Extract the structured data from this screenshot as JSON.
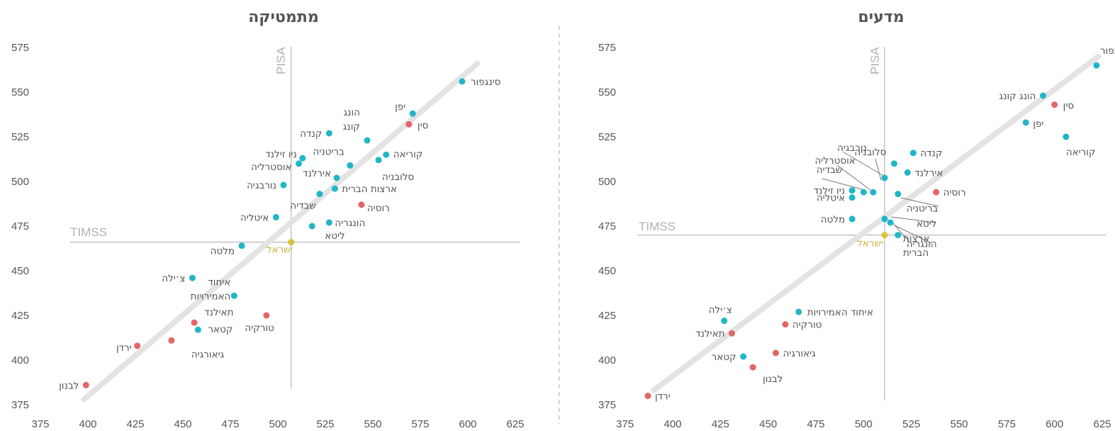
{
  "colors": {
    "oecd": "#1fb6c7",
    "non_oecd": "#e36565",
    "israel": "#d9c238",
    "trend": "#e3e3e3",
    "axis": "#a8a8a8"
  },
  "chart_data": [
    {
      "type": "scatter",
      "title": "מתמטיקה",
      "x_axis": "TIMSS",
      "y_axis": "PISA",
      "xlim": [
        375,
        625
      ],
      "ylim": [
        375,
        575
      ],
      "x_ticks": [
        375,
        400,
        425,
        450,
        475,
        500,
        525,
        550,
        575,
        600,
        625
      ],
      "y_ticks": [
        375,
        400,
        425,
        450,
        475,
        500,
        525,
        550,
        575
      ],
      "reference": {
        "x": 507,
        "y": 466
      },
      "trend": [
        [
          398,
          378
        ],
        [
          605,
          566
        ]
      ],
      "points": [
        {
          "label": "סינגפור",
          "x": 597,
          "y": 556,
          "group": "oecd"
        },
        {
          "label": "יפן",
          "x": 571,
          "y": 538,
          "group": "oecd"
        },
        {
          "label": "סין",
          "x": 569,
          "y": 532,
          "group": "non_oecd"
        },
        {
          "label": "הונג\nקונג",
          "x": 547,
          "y": 523,
          "group": "oecd"
        },
        {
          "label": "קוריאה",
          "x": 557,
          "y": 515,
          "group": "oecd"
        },
        {
          "label": "סלובניה",
          "x": 553,
          "y": 512,
          "group": "oecd"
        },
        {
          "label": "קנדה",
          "x": 527,
          "y": 527,
          "group": "oecd"
        },
        {
          "label": "בריטניה",
          "x": 538,
          "y": 509,
          "group": "oecd"
        },
        {
          "label": "ניו זילנד",
          "x": 513,
          "y": 513,
          "group": "oecd"
        },
        {
          "label": "אוסטרליה",
          "x": 511,
          "y": 510,
          "group": "oecd"
        },
        {
          "label": "אירלנד",
          "x": 531,
          "y": 502,
          "group": "oecd"
        },
        {
          "label": "נורבגיה",
          "x": 503,
          "y": 498,
          "group": "oecd"
        },
        {
          "label": "ארצות הברית",
          "x": 530,
          "y": 496,
          "group": "oecd"
        },
        {
          "label": "שבדיה",
          "x": 522,
          "y": 493,
          "group": "oecd"
        },
        {
          "label": "רוסיה",
          "x": 544,
          "y": 487,
          "group": "non_oecd"
        },
        {
          "label": "איטליה",
          "x": 499,
          "y": 480,
          "group": "oecd"
        },
        {
          "label": "הונגריה",
          "x": 527,
          "y": 477,
          "group": "oecd"
        },
        {
          "label": "ליטא",
          "x": 518,
          "y": 475,
          "group": "oecd"
        },
        {
          "label": "מלטה",
          "x": 481,
          "y": 464,
          "group": "oecd"
        },
        {
          "label": "ישראל",
          "x": 507,
          "y": 466,
          "group": "israel"
        },
        {
          "label": "צ׳ילה",
          "x": 455,
          "y": 446,
          "group": "oecd"
        },
        {
          "label": "איחוד\nהאמירויות",
          "x": 477,
          "y": 436,
          "group": "oecd"
        },
        {
          "label": "טורקיה",
          "x": 494,
          "y": 425,
          "group": "non_oecd"
        },
        {
          "label": "תאילנד",
          "x": 456,
          "y": 421,
          "group": "non_oecd"
        },
        {
          "label": "קטאר",
          "x": 458,
          "y": 417,
          "group": "oecd"
        },
        {
          "label": "גיאורגיה",
          "x": 444,
          "y": 411,
          "group": "non_oecd"
        },
        {
          "label": "ירדן",
          "x": 426,
          "y": 408,
          "group": "non_oecd"
        },
        {
          "label": "לבנון",
          "x": 399,
          "y": 386,
          "group": "non_oecd"
        }
      ]
    },
    {
      "type": "scatter",
      "title": "מדעים",
      "x_axis": "TIMSS",
      "y_axis": "PISA",
      "xlim": [
        375,
        625
      ],
      "ylim": [
        375,
        575
      ],
      "x_ticks": [
        375,
        400,
        425,
        450,
        475,
        500,
        525,
        550,
        575,
        600,
        625
      ],
      "y_ticks": [
        375,
        400,
        425,
        450,
        475,
        500,
        525,
        550,
        575
      ],
      "reference": {
        "x": 511,
        "y": 470
      },
      "trend": [
        [
          390,
          383
        ],
        [
          623,
          570
        ]
      ],
      "points": [
        {
          "label": "סינגפור",
          "x": 622,
          "y": 565,
          "group": "oecd"
        },
        {
          "label": "הונג קונג",
          "x": 594,
          "y": 548,
          "group": "oecd"
        },
        {
          "label": "סין",
          "x": 600,
          "y": 543,
          "group": "non_oecd"
        },
        {
          "label": "יפן",
          "x": 585,
          "y": 533,
          "group": "oecd"
        },
        {
          "label": "קוריאה",
          "x": 606,
          "y": 525,
          "group": "oecd"
        },
        {
          "label": "קנדה",
          "x": 526,
          "y": 516,
          "group": "oecd"
        },
        {
          "label": "סלובניה",
          "x": 516,
          "y": 510,
          "group": "oecd"
        },
        {
          "label": "אירלנד",
          "x": 523,
          "y": 505,
          "group": "oecd"
        },
        {
          "label": "נורבגיה",
          "x": 511,
          "y": 502,
          "group": "oecd"
        },
        {
          "label": "אוסטרליה",
          "x": 505,
          "y": 494,
          "group": "oecd"
        },
        {
          "label": "שבדיה",
          "x": 500,
          "y": 494,
          "group": "oecd"
        },
        {
          "label": "ניו זילנד",
          "x": 494,
          "y": 495,
          "group": "oecd"
        },
        {
          "label": "איטליה",
          "x": 494,
          "y": 491,
          "group": "oecd"
        },
        {
          "label": "רוסיה",
          "x": 538,
          "y": 494,
          "group": "non_oecd"
        },
        {
          "label": "בריטניה",
          "x": 518,
          "y": 493,
          "group": "oecd"
        },
        {
          "label": "מלטה",
          "x": 494,
          "y": 479,
          "group": "oecd"
        },
        {
          "label": "ליטא",
          "x": 511,
          "y": 479,
          "group": "oecd"
        },
        {
          "label": "ארצות\nהברית",
          "x": 514,
          "y": 477,
          "group": "oecd"
        },
        {
          "label": "הונגריה",
          "x": 518,
          "y": 470,
          "group": "oecd"
        },
        {
          "label": "ישראל",
          "x": 511,
          "y": 470,
          "group": "israel"
        },
        {
          "label": "איחוד האמירויות",
          "x": 466,
          "y": 427,
          "group": "oecd"
        },
        {
          "label": "טורקיה",
          "x": 459,
          "y": 420,
          "group": "non_oecd"
        },
        {
          "label": "צ׳ילה",
          "x": 427,
          "y": 422,
          "group": "oecd"
        },
        {
          "label": "תאילנד",
          "x": 431,
          "y": 415,
          "group": "non_oecd"
        },
        {
          "label": "גיאורגיה",
          "x": 454,
          "y": 404,
          "group": "non_oecd"
        },
        {
          "label": "קטאר",
          "x": 437,
          "y": 402,
          "group": "oecd"
        },
        {
          "label": "לבנון",
          "x": 442,
          "y": 396,
          "group": "non_oecd"
        },
        {
          "label": "ירדן",
          "x": 387,
          "y": 380,
          "group": "non_oecd"
        }
      ]
    }
  ]
}
